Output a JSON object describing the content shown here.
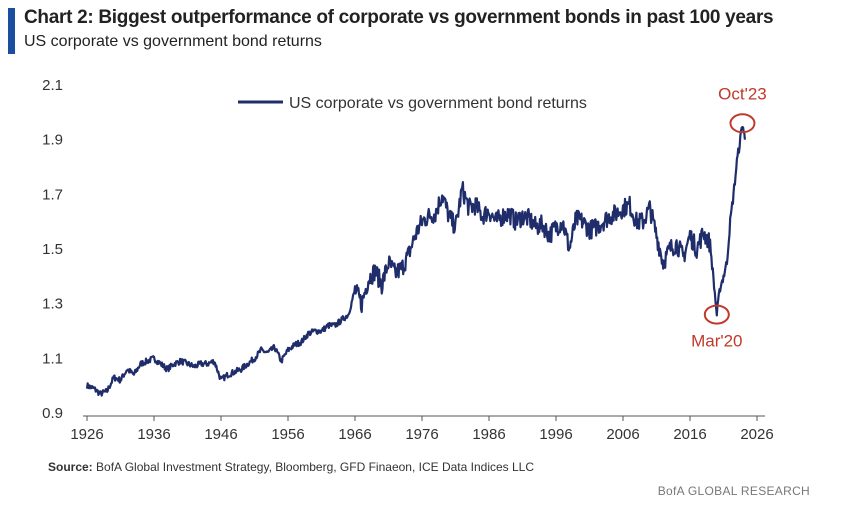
{
  "header": {
    "title": "Chart 2: Biggest outperformance of corporate vs government bonds in past 100 years",
    "subtitle": "US corporate vs government bond returns"
  },
  "footer": {
    "source_label": "Source:",
    "source_text": "BofA Global Investment Strategy, Bloomberg, GFD Finaeon, ICE Data Indices LLC",
    "brand": "BofA GLOBAL RESEARCH"
  },
  "colors": {
    "series": "#1f2d6b",
    "annotation": "#c0392b",
    "accent": "#1a4fa0"
  },
  "chart_data": {
    "type": "line",
    "title": "Chart 2: Biggest outperformance of corporate vs government bonds in past 100 years",
    "subtitle": "US corporate vs government bond returns",
    "xlabel": "",
    "ylabel": "",
    "xlim": [
      1926,
      2026
    ],
    "ylim": [
      0.9,
      2.1
    ],
    "xticks": [
      "1926",
      "1936",
      "1946",
      "1956",
      "1966",
      "1976",
      "1986",
      "1996",
      "2006",
      "2016",
      "2026"
    ],
    "yticks": [
      "0.9",
      "1.1",
      "1.3",
      "1.5",
      "1.7",
      "1.9",
      "2.1"
    ],
    "grid": false,
    "legend": "top-left",
    "series": [
      {
        "name": "US corporate vs government bond returns",
        "x": [
          1926,
          1927,
          1928,
          1929,
          1930,
          1931,
          1932,
          1933,
          1934,
          1935,
          1936,
          1937,
          1938,
          1939,
          1940,
          1941,
          1942,
          1943,
          1944,
          1945,
          1946,
          1947,
          1948,
          1949,
          1950,
          1951,
          1952,
          1953,
          1954,
          1955,
          1956,
          1957,
          1958,
          1959,
          1960,
          1961,
          1962,
          1963,
          1964,
          1965,
          1966,
          1967,
          1968,
          1969,
          1970,
          1971,
          1972,
          1973,
          1974,
          1975,
          1976,
          1977,
          1978,
          1979,
          1980,
          1981,
          1982,
          1983,
          1984,
          1985,
          1986,
          1987,
          1988,
          1989,
          1990,
          1991,
          1992,
          1993,
          1994,
          1995,
          1996,
          1997,
          1998,
          1999,
          2000,
          2001,
          2002,
          2003,
          2004,
          2005,
          2006,
          2007,
          2008,
          2009,
          2010,
          2011,
          2012,
          2013,
          2014,
          2015,
          2016,
          2017,
          2018,
          2019,
          2020,
          2020.5,
          2021,
          2021.5,
          2022,
          2022.5,
          2023,
          2023.5,
          2023.83,
          2024.2
        ],
        "values": [
          1.0,
          0.99,
          0.97,
          0.98,
          1.03,
          1.02,
          1.06,
          1.04,
          1.08,
          1.09,
          1.1,
          1.08,
          1.06,
          1.08,
          1.09,
          1.08,
          1.07,
          1.08,
          1.08,
          1.09,
          1.02,
          1.04,
          1.05,
          1.06,
          1.08,
          1.1,
          1.13,
          1.12,
          1.14,
          1.09,
          1.13,
          1.15,
          1.16,
          1.19,
          1.2,
          1.2,
          1.22,
          1.22,
          1.24,
          1.26,
          1.35,
          1.3,
          1.39,
          1.42,
          1.37,
          1.45,
          1.41,
          1.43,
          1.48,
          1.55,
          1.6,
          1.62,
          1.63,
          1.7,
          1.62,
          1.58,
          1.72,
          1.65,
          1.66,
          1.62,
          1.64,
          1.6,
          1.62,
          1.63,
          1.6,
          1.62,
          1.61,
          1.58,
          1.59,
          1.55,
          1.58,
          1.6,
          1.5,
          1.61,
          1.6,
          1.57,
          1.58,
          1.6,
          1.62,
          1.63,
          1.65,
          1.66,
          1.6,
          1.6,
          1.65,
          1.55,
          1.45,
          1.5,
          1.52,
          1.47,
          1.55,
          1.5,
          1.56,
          1.52,
          1.26,
          1.36,
          1.4,
          1.45,
          1.6,
          1.7,
          1.82,
          1.9,
          1.96,
          1.9
        ]
      }
    ],
    "annotations": [
      {
        "label": "Oct'23",
        "x": 2023.83,
        "y": 1.96,
        "position": "above"
      },
      {
        "label": "Mar'20",
        "x": 2020,
        "y": 1.26,
        "position": "below"
      }
    ]
  }
}
